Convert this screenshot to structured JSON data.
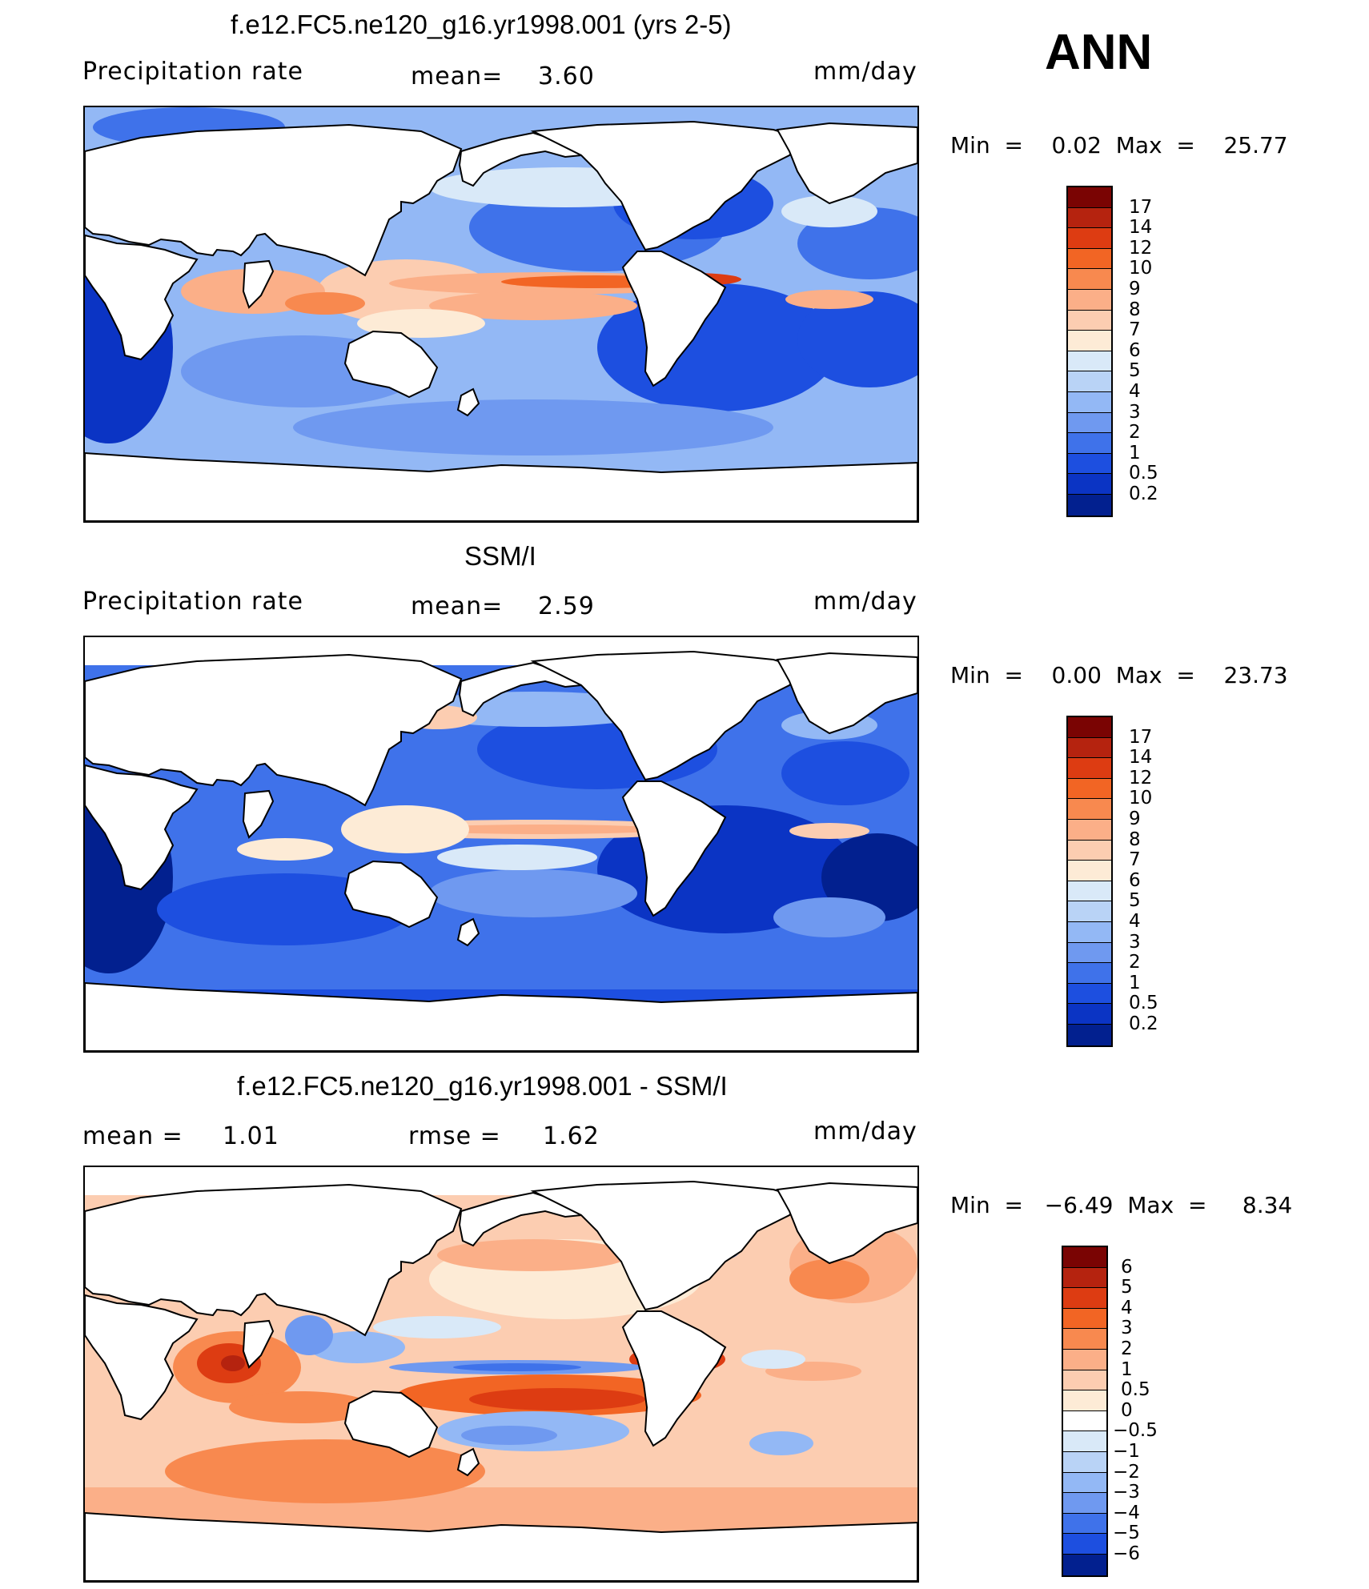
{
  "season": "ANN",
  "panels": [
    {
      "id": "model",
      "title": "f.e12.FC5.ne120_g16.yr1998.001 (yrs 2-5)",
      "left_label": "Precipitation  rate",
      "center_label": "mean=",
      "center_value": "3.60",
      "units": "mm/day",
      "min_max_text": "Min  =    0.02  Max  =    25.77",
      "colorbar": {
        "levels": [
          "17",
          "14",
          "12",
          "10",
          "9",
          "8",
          "7",
          "6",
          "5",
          "4",
          "3",
          "2",
          "1",
          "0.5",
          "0.2"
        ],
        "colors": [
          "#7a0403",
          "#b5230f",
          "#dd3c12",
          "#f26524",
          "#f8894f",
          "#fbaf88",
          "#fccdb1",
          "#fdebd6",
          "#d9e9f8",
          "#b9d3f6",
          "#93b8f5",
          "#6f99f0",
          "#3f72ea",
          "#1d4fe0",
          "#0b34c4",
          "#02208f"
        ]
      }
    },
    {
      "id": "obs",
      "title": "SSM/I",
      "left_label": "Precipitation  rate",
      "center_label": "mean=",
      "center_value": "2.59",
      "units": "mm/day",
      "min_max_text": "Min  =    0.00  Max  =    23.73",
      "colorbar": {
        "levels": [
          "17",
          "14",
          "12",
          "10",
          "9",
          "8",
          "7",
          "6",
          "5",
          "4",
          "3",
          "2",
          "1",
          "0.5",
          "0.2"
        ],
        "colors": [
          "#7a0403",
          "#b5230f",
          "#dd3c12",
          "#f26524",
          "#f8894f",
          "#fbaf88",
          "#fccdb1",
          "#fdebd6",
          "#d9e9f8",
          "#b9d3f6",
          "#93b8f5",
          "#6f99f0",
          "#3f72ea",
          "#1d4fe0",
          "#0b34c4",
          "#02208f"
        ]
      }
    },
    {
      "id": "diff",
      "title": "f.e12.FC5.ne120_g16.yr1998.001 - SSM/I",
      "left_label": "mean  =",
      "left_value": "1.01",
      "center_label": "rmse  =",
      "center_value": "1.62",
      "units": "mm/day",
      "min_max_text": "Min  =   −6.49  Max  =     8.34",
      "colorbar": {
        "levels": [
          "6",
          "5",
          "4",
          "3",
          "2",
          "1",
          "0.5",
          "0",
          "−0.5",
          "−1",
          "−2",
          "−3",
          "−4",
          "−5",
          "−6"
        ],
        "colors": [
          "#7a0403",
          "#b5230f",
          "#dd3c12",
          "#f26524",
          "#f8894f",
          "#fbaf88",
          "#fccdb1",
          "#fdebd6",
          "#ffffff",
          "#d9e9f8",
          "#b9d3f6",
          "#93b8f5",
          "#6f99f0",
          "#3f72ea",
          "#1d4fe0",
          "#02208f"
        ]
      }
    }
  ],
  "colors": {
    "ocean_blue_deep": "#0b34c4",
    "ocean_blue_mid": "#3f72ea",
    "ocean_blue_light": "#93b8f5",
    "anomaly_red_light": "#fbaf88",
    "anomaly_red_mid": "#f26524",
    "anomaly_red_deep": "#b5230f",
    "land": "#ffffff"
  }
}
